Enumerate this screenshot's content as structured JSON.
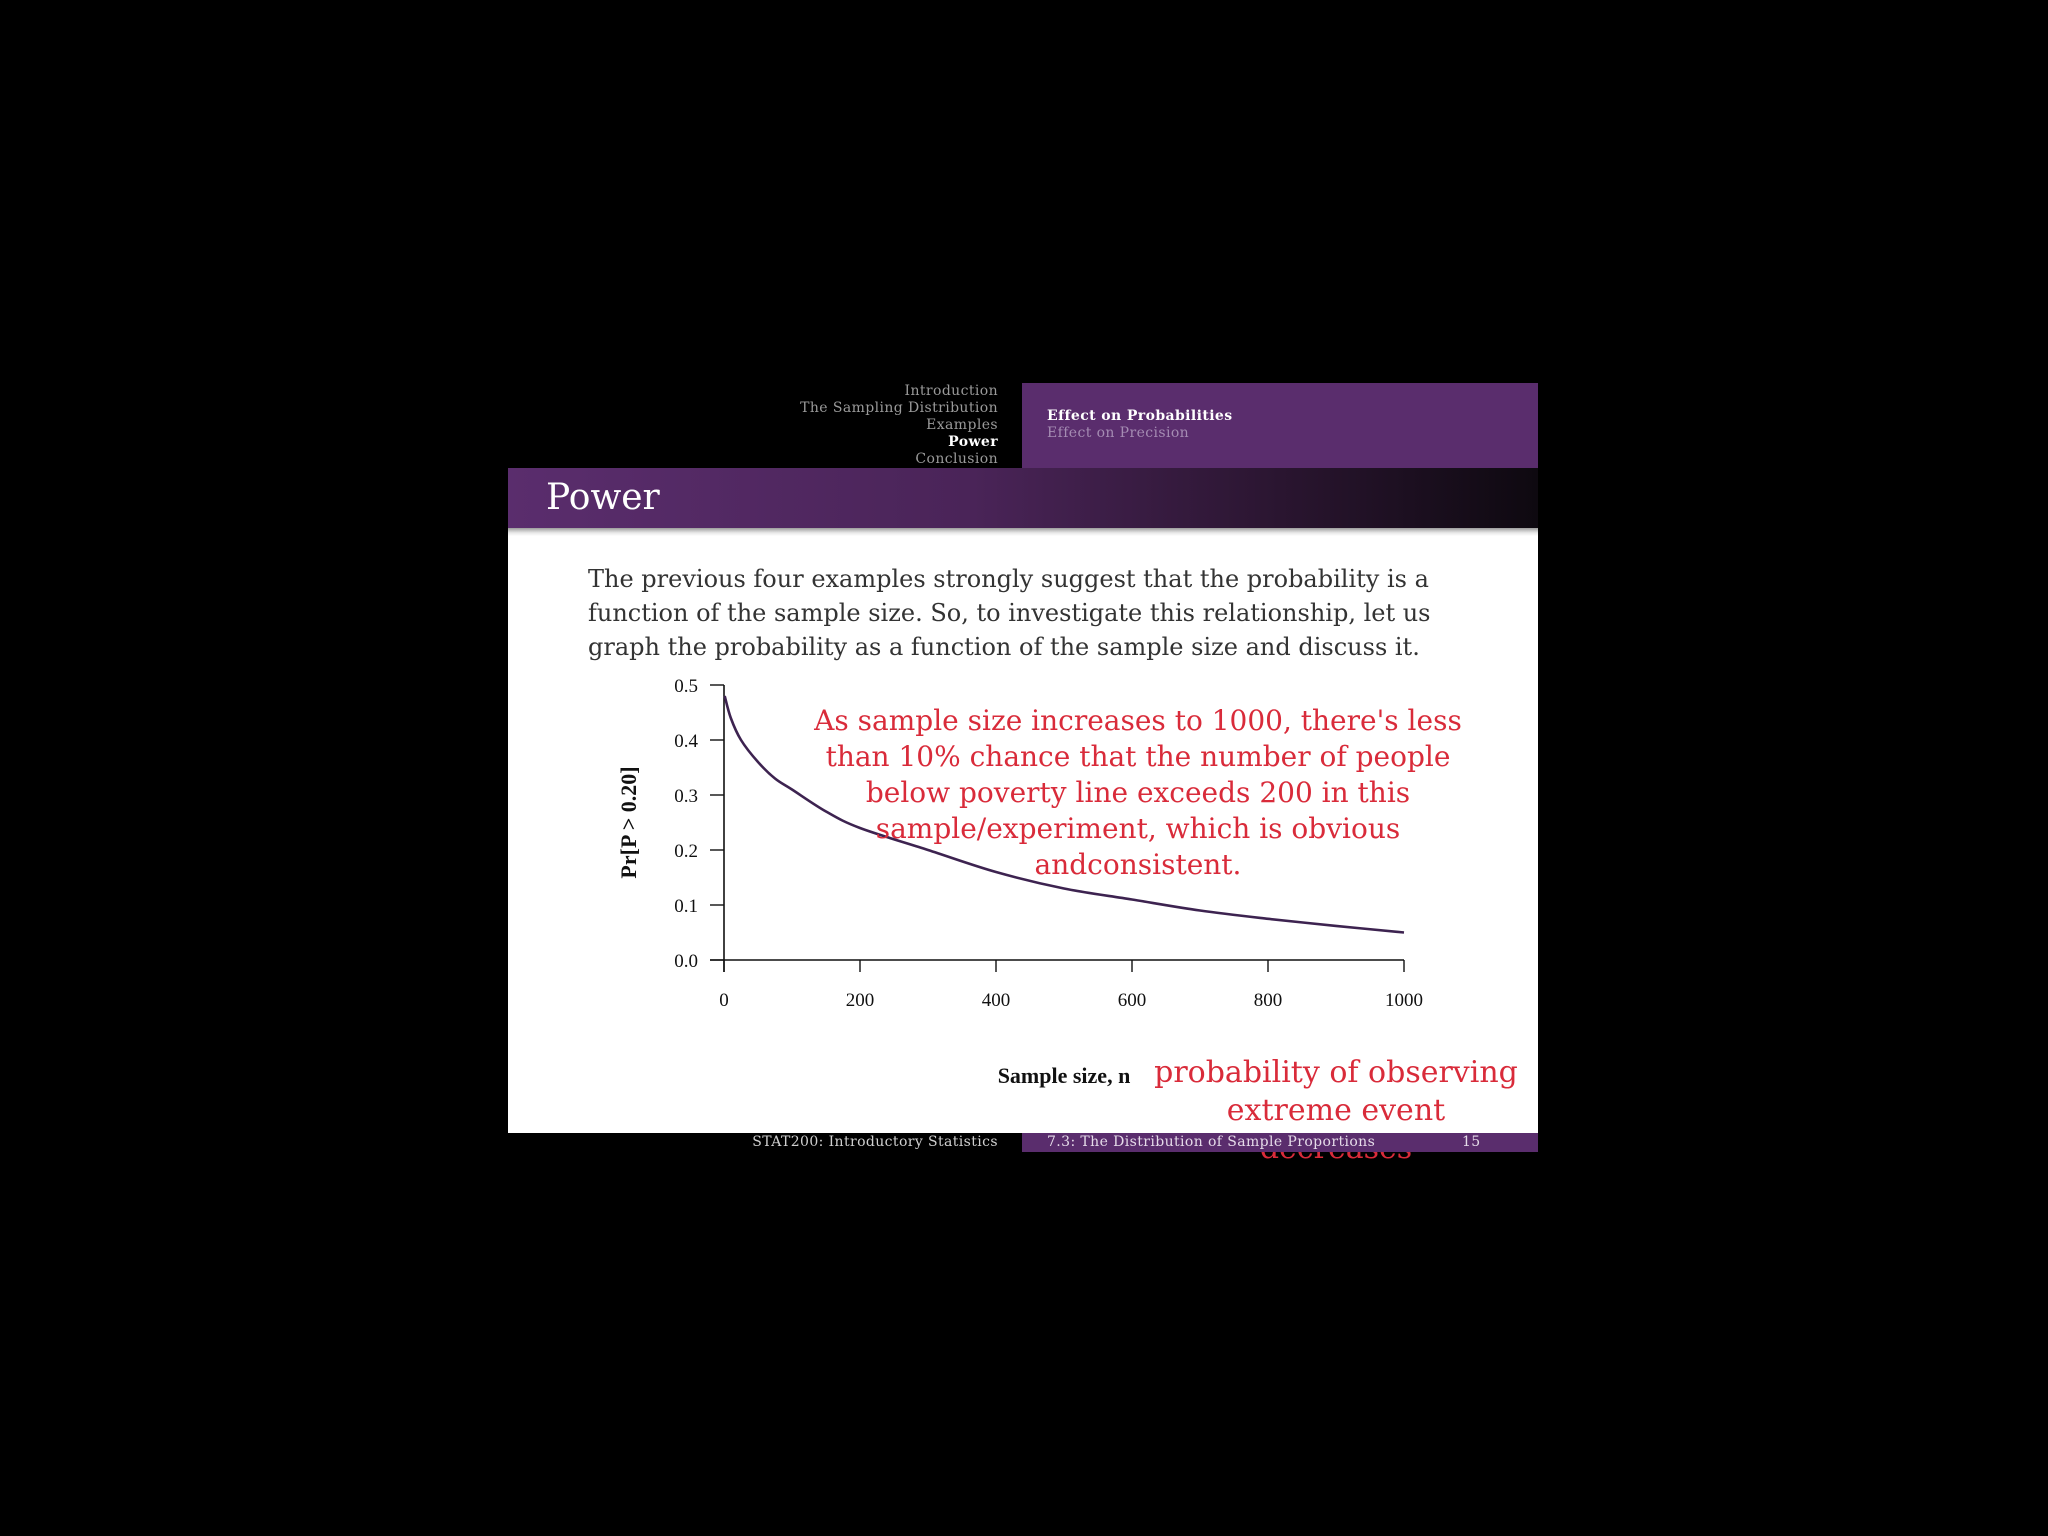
{
  "header": {
    "sections": [
      "Introduction",
      "The Sampling Distribution",
      "Examples",
      "Power",
      "Conclusion"
    ],
    "active_section": "Power",
    "subsections": [
      "Effect on Probabilities",
      "Effect on Precision"
    ],
    "active_subsection": "Effect on Probabilities"
  },
  "frame": {
    "title": "Power",
    "paragraph": "The previous four examples strongly suggest that the probability is a function of the sample size. So, to investigate this relationship, let us graph the probability as a function of the sample size and discuss it."
  },
  "annotations": {
    "top": "As sample size increases to 1000, there's less than 10% chance that the number of people below poverty line exceeds 200 in this sample/experiment, which is obvious andconsistent.",
    "bottom": "probability of observing extreme event decreases"
  },
  "footer": {
    "course": "STAT200: Introductory Statistics",
    "section": "7.3: The Distribution of Sample Proportions",
    "page": "15"
  },
  "colors": {
    "theme_purple": "#5a2d6d",
    "curve": "#3d2350",
    "annotation": "#d92b3a"
  },
  "chart_data": {
    "type": "line",
    "xlabel": "Sample size, n",
    "ylabel": "Pr[P > 0.20]",
    "xlim": [
      0,
      1000
    ],
    "ylim": [
      0,
      0.5
    ],
    "x_ticks": [
      "0",
      "200",
      "400",
      "600",
      "800",
      "1000"
    ],
    "y_ticks": [
      "0.0",
      "0.1",
      "0.2",
      "0.3",
      "0.4",
      "0.5"
    ],
    "grid": false,
    "x": [
      1,
      10,
      25,
      50,
      75,
      100,
      150,
      200,
      300,
      400,
      500,
      600,
      700,
      800,
      900,
      1000
    ],
    "y": [
      0.48,
      0.44,
      0.4,
      0.36,
      0.33,
      0.31,
      0.27,
      0.24,
      0.2,
      0.16,
      0.13,
      0.11,
      0.09,
      0.075,
      0.062,
      0.05
    ]
  }
}
